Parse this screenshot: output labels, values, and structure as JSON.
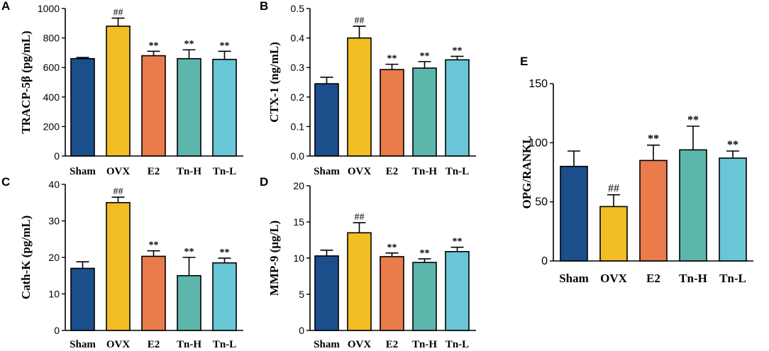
{
  "colors": {
    "Sham": "#1a4f8c",
    "OVX": "#f2be24",
    "E2": "#ea7b4b",
    "Tn-H": "#5cb6ac",
    "Tn-L": "#68c6d6"
  },
  "chart_data": [
    {
      "type": "bar",
      "panel": "A",
      "ylabel": "TRACP-5β (pg/mL)",
      "categories": [
        "Sham",
        "OVX",
        "E2",
        "Tn-H",
        "Tn-L"
      ],
      "values": [
        660,
        880,
        680,
        660,
        655
      ],
      "errors": [
        8,
        55,
        30,
        60,
        55
      ],
      "annotations": [
        "",
        "##",
        "**",
        "**",
        "**"
      ],
      "ylim": [
        0,
        1000
      ],
      "yticks": [
        0,
        200,
        400,
        600,
        800,
        1000
      ],
      "ytick_labels": [
        "0",
        "200",
        "400",
        "600",
        "800",
        "1000"
      ]
    },
    {
      "type": "bar",
      "panel": "B",
      "ylabel": "CTX-1 (ng/mL)",
      "categories": [
        "Sham",
        "OVX",
        "E2",
        "Tn-H",
        "Tn-L"
      ],
      "values": [
        0.245,
        0.4,
        0.293,
        0.298,
        0.326
      ],
      "errors": [
        0.022,
        0.04,
        0.018,
        0.022,
        0.012
      ],
      "annotations": [
        "",
        "##",
        "**",
        "**",
        "**"
      ],
      "ylim": [
        0,
        0.5
      ],
      "yticks": [
        0,
        0.1,
        0.2,
        0.3,
        0.4,
        0.5
      ],
      "ytick_labels": [
        "0.0",
        "0.1",
        "0.2",
        "0.3",
        "0.4",
        "0.5"
      ]
    },
    {
      "type": "bar",
      "panel": "C",
      "ylabel": "Cath-K (pg/mL)",
      "categories": [
        "Sham",
        "OVX",
        "E2",
        "Tn-H",
        "Tn-L"
      ],
      "values": [
        17,
        35,
        20.3,
        15,
        18.5
      ],
      "errors": [
        1.8,
        1.5,
        1.5,
        5,
        1.3
      ],
      "annotations": [
        "",
        "##",
        "**",
        "**",
        "**"
      ],
      "ylim": [
        0,
        40
      ],
      "yticks": [
        0,
        10,
        20,
        30,
        40
      ],
      "ytick_labels": [
        "0",
        "10",
        "20",
        "30",
        "40"
      ]
    },
    {
      "type": "bar",
      "panel": "D",
      "ylabel": "MMP-9 (μg/L)",
      "categories": [
        "Sham",
        "OVX",
        "E2",
        "Tn-H",
        "Tn-L"
      ],
      "values": [
        10.3,
        13.5,
        10.2,
        9.4,
        10.9
      ],
      "errors": [
        0.8,
        1.4,
        0.5,
        0.5,
        0.6
      ],
      "annotations": [
        "",
        "##",
        "**",
        "**",
        "**"
      ],
      "ylim": [
        0,
        20
      ],
      "yticks": [
        0,
        5,
        10,
        15,
        20
      ],
      "ytick_labels": [
        "0",
        "5",
        "10",
        "15",
        "20"
      ]
    },
    {
      "type": "bar",
      "panel": "E",
      "ylabel": "OPG/RANKL",
      "categories": [
        "Sham",
        "OVX",
        "E2",
        "Tn-H",
        "Tn-L"
      ],
      "values": [
        80,
        46,
        85,
        94,
        87
      ],
      "errors": [
        13,
        10,
        13,
        20,
        6
      ],
      "annotations": [
        "",
        "##",
        "**",
        "**",
        "**"
      ],
      "ylim": [
        0,
        150
      ],
      "yticks": [
        0,
        50,
        100,
        150
      ],
      "ytick_labels": [
        "0",
        "50",
        "100",
        "150"
      ]
    }
  ]
}
